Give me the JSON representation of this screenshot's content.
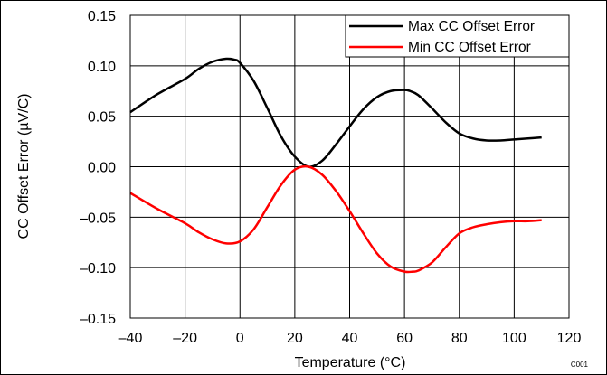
{
  "chart_data": {
    "type": "line",
    "title": "",
    "xlabel": "Temperature (°C)",
    "ylabel": "CC Offset Error (µV/C)",
    "xlim": [
      -40,
      120
    ],
    "ylim": [
      -0.15,
      0.15
    ],
    "x_ticks": [
      -40,
      -20,
      0,
      20,
      40,
      60,
      80,
      100,
      120
    ],
    "y_ticks": [
      -0.15,
      -0.1,
      -0.05,
      0.0,
      0.05,
      0.1,
      0.15
    ],
    "x_tick_labels": [
      "–40",
      "–20",
      "0",
      "20",
      "40",
      "60",
      "80",
      "100",
      "120"
    ],
    "y_tick_labels": [
      "–0.15",
      "–0.10",
      "–0.05",
      "0.00",
      "0.05",
      "0.10",
      "0.15"
    ],
    "grid": true,
    "legend_position": "top-right",
    "figure_id": "C001",
    "series": [
      {
        "name": "Max CC Offset Error",
        "color": "#000000",
        "x": [
          -40,
          -30,
          -20,
          -15,
          -10,
          -5,
          -2,
          0,
          5,
          10,
          15,
          20,
          25,
          30,
          35,
          40,
          45,
          50,
          55,
          60,
          62,
          65,
          70,
          75,
          80,
          85,
          90,
          95,
          100,
          105,
          110
        ],
        "y": [
          0.054,
          0.072,
          0.087,
          0.097,
          0.104,
          0.107,
          0.106,
          0.103,
          0.085,
          0.058,
          0.03,
          0.01,
          0.0,
          0.006,
          0.022,
          0.04,
          0.057,
          0.069,
          0.075,
          0.076,
          0.075,
          0.071,
          0.058,
          0.044,
          0.033,
          0.028,
          0.026,
          0.026,
          0.027,
          0.028,
          0.029
        ]
      },
      {
        "name": "Min CC Offset Error",
        "color": "#ff0000",
        "x": [
          -40,
          -30,
          -20,
          -15,
          -10,
          -5,
          0,
          5,
          10,
          15,
          20,
          25,
          30,
          35,
          40,
          45,
          50,
          55,
          60,
          63,
          65,
          70,
          75,
          80,
          85,
          90,
          95,
          100,
          105,
          110
        ],
        "y": [
          -0.026,
          -0.042,
          -0.056,
          -0.065,
          -0.072,
          -0.076,
          -0.074,
          -0.062,
          -0.04,
          -0.018,
          -0.003,
          0.0,
          -0.008,
          -0.024,
          -0.044,
          -0.066,
          -0.086,
          -0.099,
          -0.104,
          -0.104,
          -0.103,
          -0.095,
          -0.08,
          -0.066,
          -0.06,
          -0.057,
          -0.055,
          -0.054,
          -0.054,
          -0.053
        ]
      }
    ]
  }
}
